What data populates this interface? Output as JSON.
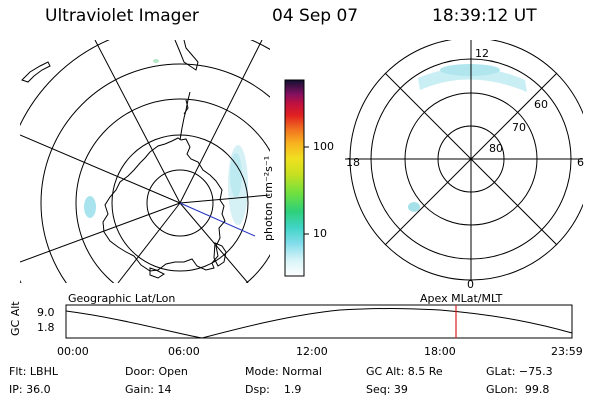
{
  "header": {
    "instrument": "Ultraviolet Imager",
    "date": "04 Sep 07",
    "time": "18:39:12 UT"
  },
  "colorbar": {
    "unit_label": "photon cm⁻²s⁻¹",
    "ticks": [
      "100",
      "10"
    ]
  },
  "polar_plot": {
    "mlt_labels": [
      "12",
      "18",
      "6",
      "0"
    ],
    "lat_labels": [
      "60",
      "70",
      "80"
    ]
  },
  "panel_labels": {
    "geographic": "Geographic Lat/Lon",
    "apex": "Apex MLat/MLT"
  },
  "altitude_chart": {
    "y_axis_label": "GC Alt",
    "y_ticks": [
      "9.0",
      "1.8"
    ],
    "x_ticks": [
      "00:00",
      "06:00",
      "12:00",
      "18:00",
      "23:59"
    ],
    "current_time_marker": "18:39"
  },
  "info": {
    "row1": {
      "filter": "Flt: LBHL",
      "door": "Door: Open",
      "mode": "Mode: Normal",
      "gc_alt": "GC Alt: 8.5 Re",
      "glat": "GLat: −75.3"
    },
    "row2": {
      "ip": "IP: 36.0",
      "gain": "Gain: 14",
      "dsp": "Dsp:    1.9",
      "seq": "Seq: 39",
      "glon": "GLon:  99.8"
    }
  },
  "colors": {
    "marker": "#e02020",
    "aurora": "#7fdcea"
  }
}
